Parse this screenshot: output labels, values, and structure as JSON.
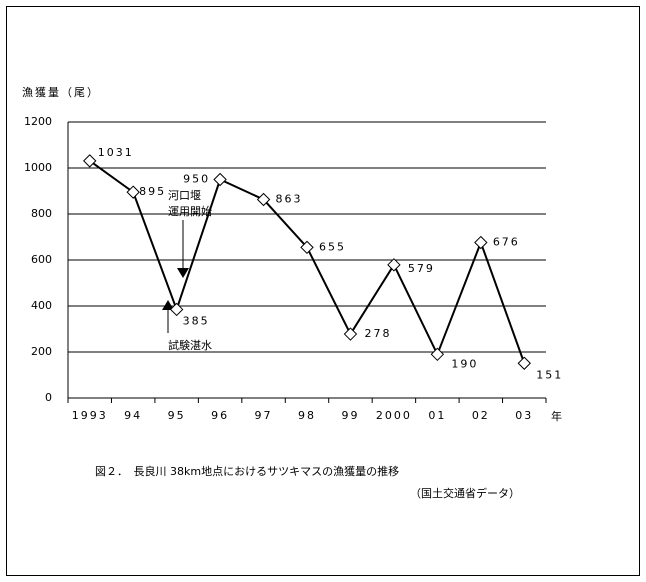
{
  "chart_data": {
    "type": "line",
    "y_label": "漁獲量（尾）",
    "x_unit": "年",
    "categories": [
      "1993",
      "94",
      "95",
      "96",
      "97",
      "98",
      "99",
      "2000",
      "01",
      "02",
      "03"
    ],
    "values": [
      1031,
      895,
      385,
      950,
      863,
      655,
      278,
      579,
      190,
      676,
      151
    ],
    "color": "#000000",
    "ylim": [
      0,
      1200
    ],
    "yticks": [
      0,
      200,
      400,
      600,
      800,
      1000,
      1200
    ],
    "grid": true,
    "annotations": [
      "河口堰",
      "運用開始",
      "試験湛水"
    ],
    "caption": "図２．　長良川 38km地点におけるサツキマスの漁獲量の推移",
    "source": "（国土交通省データ）"
  }
}
